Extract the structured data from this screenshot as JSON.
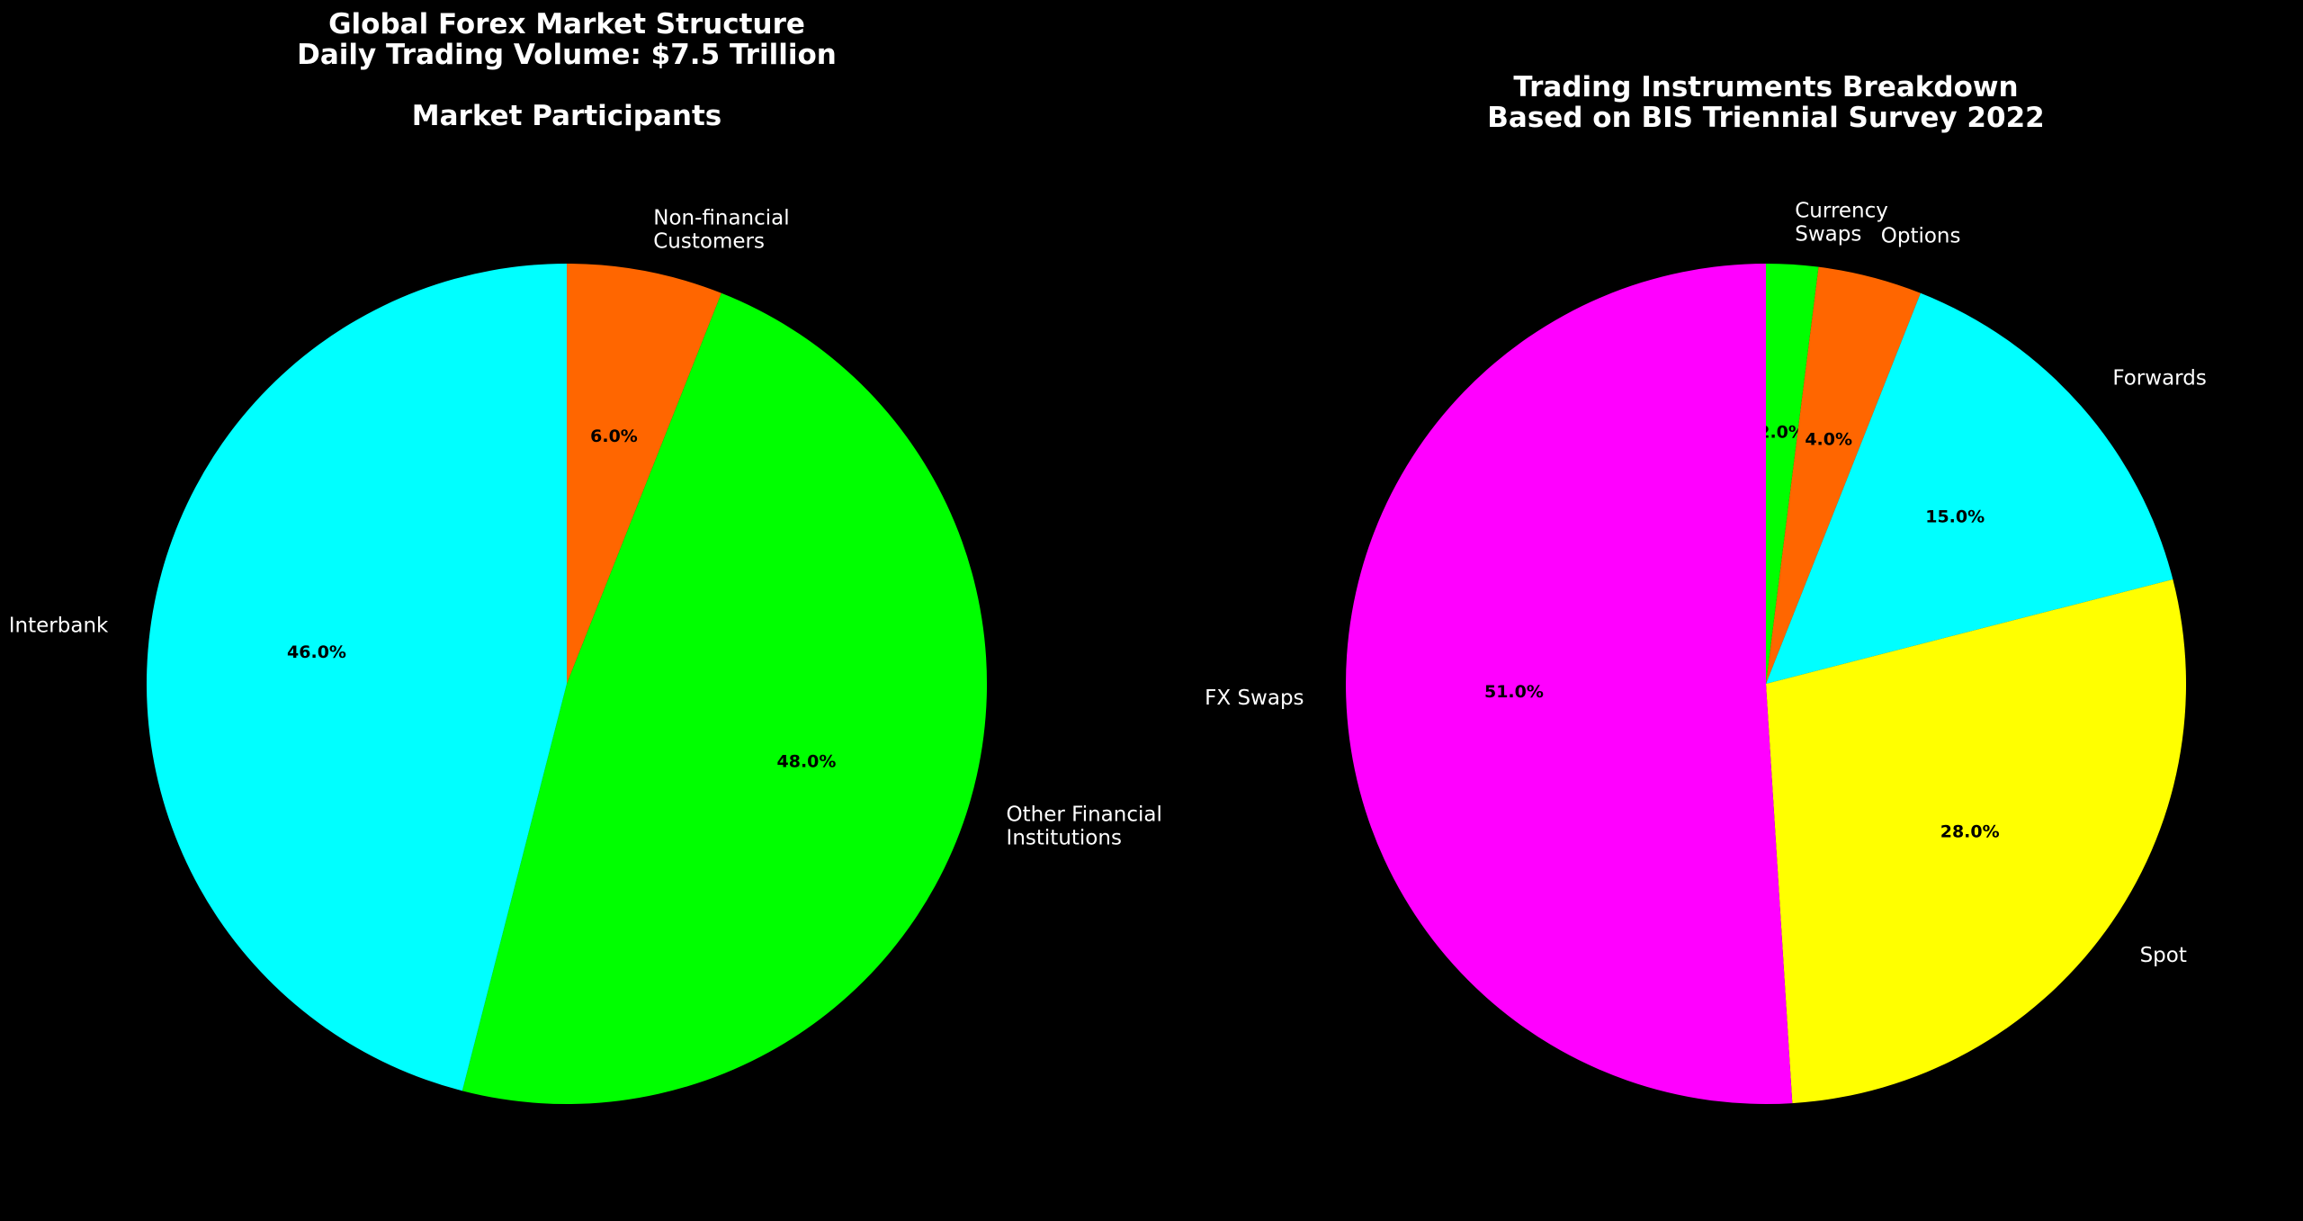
{
  "chart_data": [
    {
      "type": "pie",
      "title_lines": [
        "Global Forex Market Structure",
        "Daily Trading Volume: $7.5 Trillion",
        "",
        "Market Participants"
      ],
      "slices": [
        {
          "label_lines": [
            "Non-financial",
            "Customers"
          ],
          "value": 6.0,
          "value_label": "6.0%",
          "color": "#ff6600"
        },
        {
          "label_lines": [
            "Other Financial",
            "Institutions"
          ],
          "value": 48.0,
          "value_label": "48.0%",
          "color": "#00ff00"
        },
        {
          "label_lines": [
            "Interbank"
          ],
          "value": 46.0,
          "value_label": "46.0%",
          "color": "#00ffff"
        }
      ],
      "start_angle": 90,
      "direction": "clockwise",
      "legend": false
    },
    {
      "type": "pie",
      "title_lines": [
        "Trading Instruments Breakdown",
        "Based on BIS Triennial Survey 2022"
      ],
      "slices": [
        {
          "label_lines": [
            "Currency",
            "Swaps"
          ],
          "value": 2.0,
          "value_label": "2.0%",
          "color": "#00ff00"
        },
        {
          "label_lines": [
            "Options"
          ],
          "value": 4.0,
          "value_label": "4.0%",
          "color": "#ff6600"
        },
        {
          "label_lines": [
            "Forwards"
          ],
          "value": 15.0,
          "value_label": "15.0%",
          "color": "#00ffff"
        },
        {
          "label_lines": [
            "Spot"
          ],
          "value": 28.0,
          "value_label": "28.0%",
          "color": "#ffff00"
        },
        {
          "label_lines": [
            "FX Swaps"
          ],
          "value": 51.0,
          "value_label": "51.0%",
          "color": "#ff00ff"
        }
      ],
      "start_angle": 90,
      "direction": "clockwise",
      "legend": false
    }
  ],
  "background_color": "#000000",
  "text_color": "#ffffff"
}
